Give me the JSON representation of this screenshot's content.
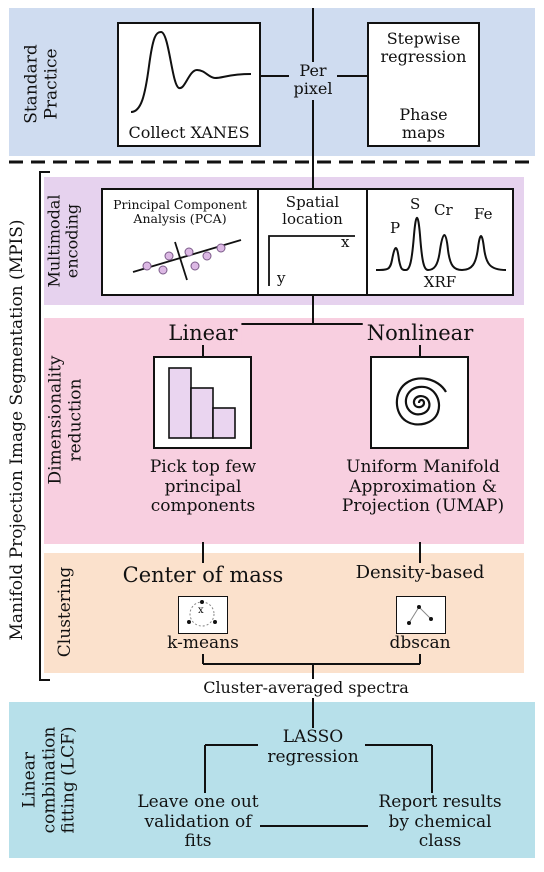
{
  "colors": {
    "standard_band": "#cfdcf0",
    "multimodal_band": "#e6d2ee",
    "dimred_band": "#f8cfe0",
    "clustering_band": "#fbe1cc",
    "lcf_band": "#b7e0ea",
    "point_fill": "#dcb8e4",
    "bar_fill": "#ead5f0"
  },
  "standard": {
    "label_lines": [
      "Standard",
      "Practice"
    ],
    "xanes_caption": "Collect XANES",
    "per_pixel_lines": [
      "Per",
      "pixel"
    ],
    "stepwise_lines": [
      "Stepwise",
      "regression"
    ],
    "phase_lines": [
      "Phase",
      "maps"
    ]
  },
  "mpis": {
    "label": "Manifold Projection Image Segmentation (MPIS)"
  },
  "multimodal": {
    "label_lines": [
      "Multimodal",
      "encoding"
    ],
    "pca_lines": [
      "Principal Component",
      "Analysis (PCA)"
    ],
    "spatial_lines": [
      "Spatial",
      "location"
    ],
    "axis_x": "x",
    "axis_y": "y",
    "xrf_caption": "XRF",
    "peaks": [
      "P",
      "S",
      "Cr",
      "Fe"
    ]
  },
  "dimred": {
    "label_lines": [
      "Dimensionality",
      "reduction"
    ],
    "linear_title": "Linear",
    "nonlinear_title": "Nonlinear",
    "linear_desc_lines": [
      "Pick top few",
      "principal",
      "components"
    ],
    "nonlinear_desc_lines": [
      "Uniform Manifold",
      "Approximation &",
      "Projection (UMAP)"
    ]
  },
  "clustering": {
    "label": "Clustering",
    "left_title": "Center of mass",
    "right_title": "Density-based",
    "left_method": "k-means",
    "right_method": "dbscan",
    "centroid_mark": "x"
  },
  "cluster_avg": "Cluster-averaged spectra",
  "lcf": {
    "label_lines": [
      "Linear",
      "combination",
      "fitting (LCF)"
    ],
    "lasso_lines": [
      "LASSO",
      "regression"
    ],
    "loo_lines": [
      "Leave one out",
      "validation of",
      "fits"
    ],
    "report_lines": [
      "Report results",
      "by chemical",
      "class"
    ]
  }
}
